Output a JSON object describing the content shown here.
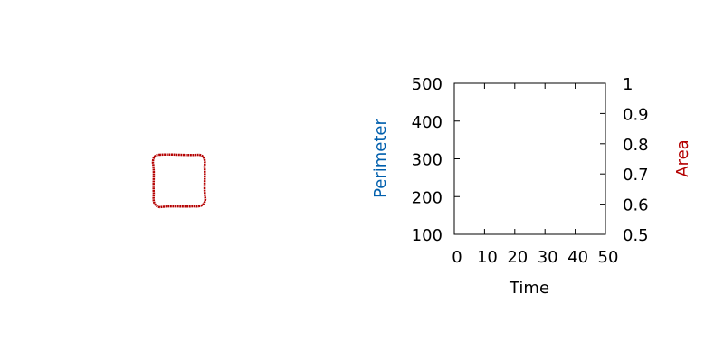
{
  "shape_panel": {
    "description_color": "#b40000"
  },
  "chart_data": {
    "type": "line",
    "title": "",
    "xlabel": "Time",
    "ylabel": "Perimeter",
    "y2label": "Area",
    "xlim": [
      0,
      50
    ],
    "ylim": [
      100,
      500
    ],
    "y2lim": [
      0.5,
      1
    ],
    "xticks": [
      "0",
      "10",
      "20",
      "30",
      "40",
      "50"
    ],
    "yticks": [
      "100",
      "200",
      "300",
      "400",
      "500"
    ],
    "y2ticks": [
      "0.5",
      "0.6",
      "0.7",
      "0.8",
      "0.9",
      "1"
    ],
    "series": [
      {
        "name": "Perimeter",
        "axis": "left",
        "color": "#005fad",
        "x": [],
        "values": []
      },
      {
        "name": "Area",
        "axis": "right",
        "color": "#b40000",
        "x": [],
        "values": []
      }
    ]
  },
  "colors": {
    "ylabel": "#005fad",
    "y2label": "#b40000",
    "axis": "#000000"
  }
}
